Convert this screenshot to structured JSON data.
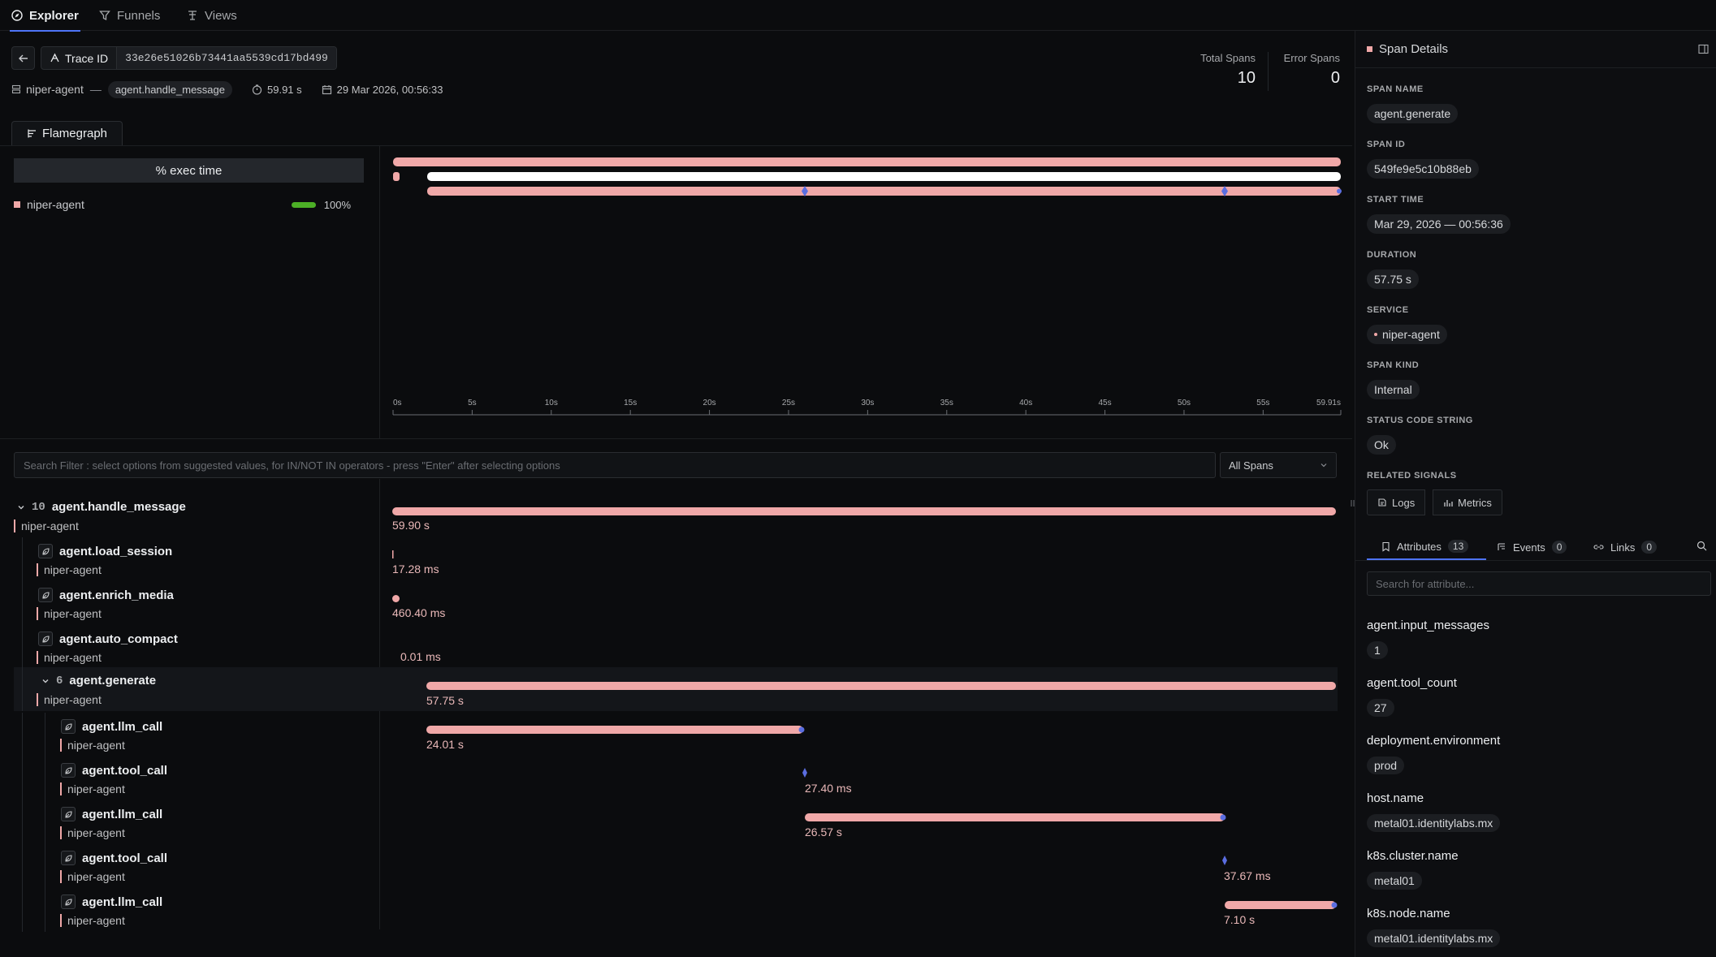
{
  "nav": {
    "tabs": [
      {
        "label": "Explorer",
        "icon": "compass-icon",
        "active": true
      },
      {
        "label": "Funnels",
        "icon": "filter-icon"
      },
      {
        "label": "Views",
        "icon": "views-icon"
      }
    ]
  },
  "trace": {
    "id_label": "Trace ID",
    "id_value": "33e26e51026b73441aa5539cd17bd499",
    "service": "niper-agent",
    "separator": "—",
    "root_span": "agent.handle_message",
    "duration": "59.91 s",
    "timestamp": "29 Mar 2026, 00:56:33",
    "total_spans_label": "Total Spans",
    "total_spans": "10",
    "error_spans_label": "Error Spans",
    "error_spans": "0"
  },
  "flamegraph": {
    "tab_label": "Flamegraph",
    "exec_header": "% exec time",
    "service": "niper-agent",
    "percent": "100%",
    "service_color": "#f0a8a8",
    "bar_color": "#4caf26",
    "axis_ticks": [
      "0s",
      "5s",
      "10s",
      "15s",
      "20s",
      "25s",
      "30s",
      "35s",
      "40s",
      "45s",
      "50s",
      "55s",
      "59.91s"
    ]
  },
  "waterfall": {
    "search_placeholder": "Search Filter : select options from suggested values, for IN/NOT IN operators - press \"Enter\" after selecting options",
    "filter_value": "All Spans",
    "spans": [
      {
        "name": "agent.handle_message",
        "service": "niper-agent",
        "duration": "59.90 s",
        "count": "10"
      },
      {
        "name": "agent.load_session",
        "service": "niper-agent",
        "duration": "17.28 ms"
      },
      {
        "name": "agent.enrich_media",
        "service": "niper-agent",
        "duration": "460.40 ms"
      },
      {
        "name": "agent.auto_compact",
        "service": "niper-agent",
        "duration": "0.01 ms"
      },
      {
        "name": "agent.generate",
        "service": "niper-agent",
        "duration": "57.75 s",
        "count": "6"
      },
      {
        "name": "agent.llm_call",
        "service": "niper-agent",
        "duration": "24.01 s"
      },
      {
        "name": "agent.tool_call",
        "service": "niper-agent",
        "duration": "27.40 ms"
      },
      {
        "name": "agent.llm_call",
        "service": "niper-agent",
        "duration": "26.57 s"
      },
      {
        "name": "agent.tool_call",
        "service": "niper-agent",
        "duration": "37.67 ms"
      },
      {
        "name": "agent.llm_call",
        "service": "niper-agent",
        "duration": "7.10 s"
      }
    ]
  },
  "details": {
    "title": "Span Details",
    "span_name_label": "SPAN NAME",
    "span_name": "agent.generate",
    "span_id_label": "SPAN ID",
    "span_id": "549fe9e5c10b88eb",
    "start_time_label": "START TIME",
    "start_time": "Mar 29, 2026 — 00:56:36",
    "duration_label": "DURATION",
    "duration": "57.75 s",
    "service_label": "SERVICE",
    "service": "niper-agent",
    "span_kind_label": "SPAN KIND",
    "span_kind": "Internal",
    "status_label": "STATUS CODE STRING",
    "status": "Ok",
    "related_label": "RELATED SIGNALS",
    "logs_label": "Logs",
    "metrics_label": "Metrics",
    "tabs": {
      "attributes": "Attributes",
      "attributes_count": "13",
      "events": "Events",
      "events_count": "0",
      "links": "Links",
      "links_count": "0"
    },
    "attr_search_placeholder": "Search for attribute...",
    "attributes": [
      {
        "key": "agent.input_messages",
        "value": "1"
      },
      {
        "key": "agent.tool_count",
        "value": "27"
      },
      {
        "key": "deployment.environment",
        "value": "prod"
      },
      {
        "key": "host.name",
        "value": "metal01.identitylabs.mx"
      },
      {
        "key": "k8s.cluster.name",
        "value": "metal01"
      },
      {
        "key": "k8s.node.name",
        "value": "metal01.identitylabs.mx"
      }
    ]
  },
  "colors": {
    "accent": "#4e74f8",
    "span_bar": "#f0a8a8",
    "marker": "#5b6ee1",
    "background": "#0b0c0e"
  }
}
